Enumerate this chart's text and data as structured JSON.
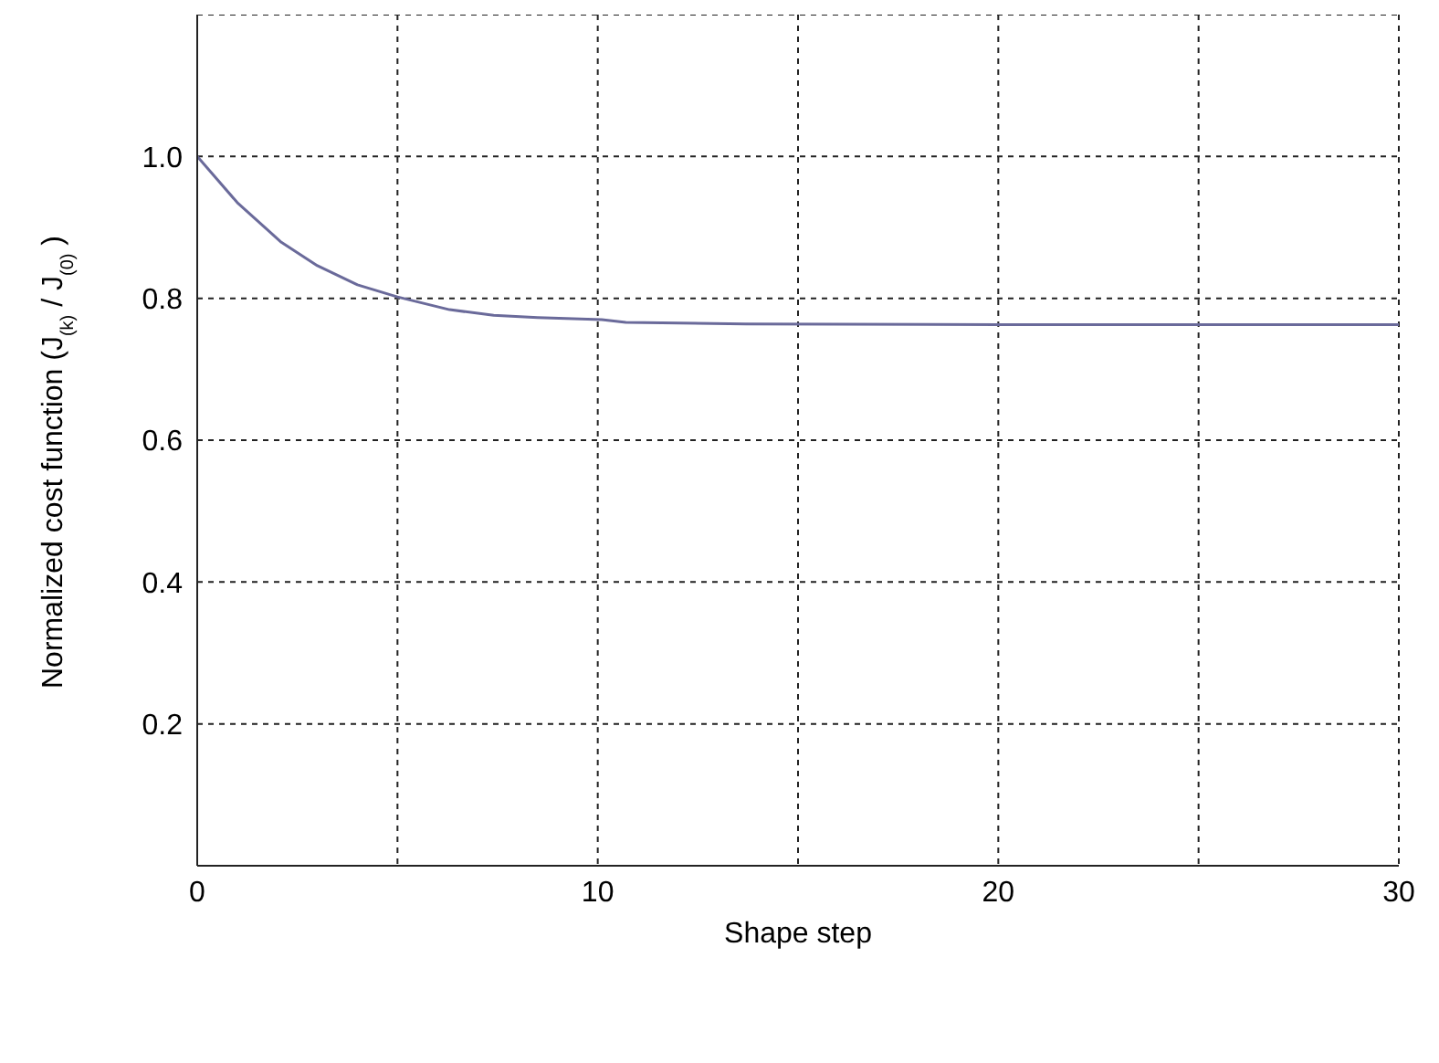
{
  "chart_data": {
    "type": "line",
    "xlabel": "Shape step",
    "ylabel": "Normalized cost function (J$_{(k)}$ / J$_{(0)}$ )",
    "x": [
      0,
      1,
      2.1,
      3,
      4,
      5,
      6.3,
      7.4,
      8.5,
      10.1,
      10.7,
      13.7,
      20,
      30
    ],
    "series": [
      {
        "color": "#6a6a9a",
        "values": [
          1.0,
          0.935,
          0.879,
          0.846,
          0.819,
          0.802,
          0.784,
          0.776,
          0.773,
          0.77,
          0.766,
          0.764,
          0.763,
          0.763
        ]
      }
    ],
    "xlim": [
      0,
      30
    ],
    "xticks": [
      0,
      {
        "value": 5,
        "label": null
      },
      10,
      {
        "value": 15,
        "label": null
      },
      20,
      {
        "value": 25,
        "label": null
      },
      30
    ],
    "ylim": [
      0,
      1.2
    ],
    "yticks": [
      0.2,
      0.4,
      0.6,
      0.8,
      {
        "value": 1.0,
        "label": "1.0"
      }
    ],
    "grid": true,
    "marker": "none",
    "line_style": "solid"
  }
}
